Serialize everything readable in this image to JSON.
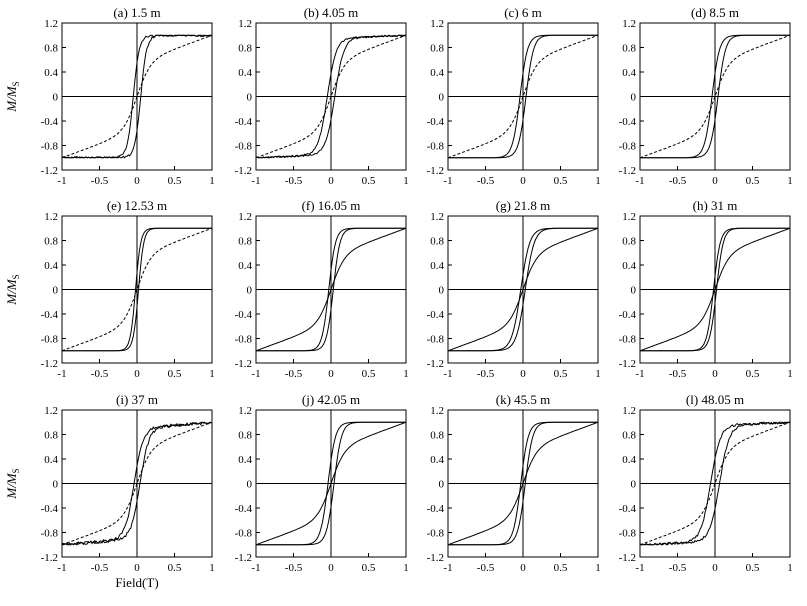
{
  "figure": {
    "y_label_main": "M/M",
    "y_label_sub": "S",
    "x_label": "Field(T)"
  },
  "chart_data": {
    "type": "line",
    "description_of_series": "each panel: hysteresis loop (solid, two branches) and paramagnetic-corrected/initial curve (dashed)",
    "x_ticks": [
      "-1",
      "-0.5",
      "0",
      "0.5",
      "1"
    ],
    "y_ticks": [
      "1.2",
      "0.8",
      "0.4",
      "0",
      "-0.4",
      "-0.8",
      "-1.2"
    ],
    "xlim": [
      -1,
      1
    ],
    "ylim": [
      -1.2,
      1.2
    ],
    "panels": [
      {
        "title": "(a) 1.5 m",
        "Hc": 0.05,
        "sat": 0.08,
        "lin": 0.0,
        "noise": 0.04,
        "dash": true
      },
      {
        "title": "(b) 4.05 m",
        "Hc": 0.05,
        "sat": 0.12,
        "lin": 0.05,
        "noise": 0.03,
        "dash": true
      },
      {
        "title": "(c) 6 m",
        "Hc": 0.04,
        "sat": 0.1,
        "lin": 0.0,
        "noise": 0.0,
        "dash": true
      },
      {
        "title": "(d) 8.5 m",
        "Hc": 0.04,
        "sat": 0.1,
        "lin": 0.0,
        "noise": 0.0,
        "dash": true
      },
      {
        "title": "(e) 12.53 m",
        "Hc": 0.02,
        "sat": 0.07,
        "lin": 0.0,
        "noise": 0.0,
        "dash": true
      },
      {
        "title": "(f) 16.05 m",
        "Hc": 0.03,
        "sat": 0.09,
        "lin": 0.0,
        "noise": 0.0,
        "dash": false
      },
      {
        "title": "(g) 21.8 m",
        "Hc": 0.03,
        "sat": 0.12,
        "lin": 0.0,
        "noise": 0.0,
        "dash": false
      },
      {
        "title": "(h) 31 m",
        "Hc": 0.02,
        "sat": 0.09,
        "lin": 0.0,
        "noise": 0.0,
        "dash": false
      },
      {
        "title": "(i) 37 m",
        "Hc": 0.04,
        "sat": 0.12,
        "lin": 0.1,
        "noise": 0.05,
        "dash": true
      },
      {
        "title": "(j) 42.05 m",
        "Hc": 0.04,
        "sat": 0.1,
        "lin": 0.0,
        "noise": 0.0,
        "dash": false
      },
      {
        "title": "(k) 45.5 m",
        "Hc": 0.03,
        "sat": 0.1,
        "lin": 0.0,
        "noise": 0.0,
        "dash": false
      },
      {
        "title": "(l) 48.05 m",
        "Hc": 0.06,
        "sat": 0.13,
        "lin": 0.05,
        "noise": 0.04,
        "dash": true
      }
    ]
  }
}
